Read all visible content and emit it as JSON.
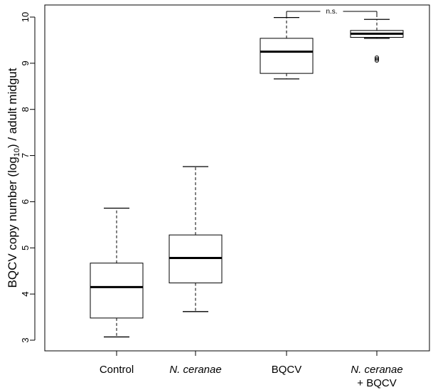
{
  "chart_data": {
    "type": "boxplot",
    "title": "",
    "xlabel": "",
    "ylabel_main": "BQCV copy number (log",
    "ylabel_sub": "10",
    "ylabel_tail": ") / adult midgut",
    "ylim": [
      3,
      10
    ],
    "yticks": [
      "3",
      "4",
      "5",
      "6",
      "7",
      "8",
      "9",
      "10"
    ],
    "grid": false,
    "legend": "none",
    "categories": [
      {
        "line1": "Control",
        "line2": "",
        "italic": false
      },
      {
        "line1": "N. ceranae",
        "line2": "",
        "italic": true
      },
      {
        "line1": "BQCV",
        "line2": "",
        "italic": false
      },
      {
        "line1": "N. ceranae",
        "line2": "+ BQCV",
        "italic": true
      }
    ],
    "boxes": [
      {
        "whisker_low": 3.07,
        "q1": 3.48,
        "median": 4.15,
        "q3": 4.67,
        "whisker_high": 5.86,
        "outliers": []
      },
      {
        "whisker_low": 3.62,
        "q1": 4.24,
        "median": 4.78,
        "q3": 5.28,
        "whisker_high": 6.76,
        "outliers": []
      },
      {
        "whisker_low": 8.66,
        "q1": 8.78,
        "median": 9.25,
        "q3": 9.54,
        "whisker_high": 9.99,
        "outliers": []
      },
      {
        "whisker_low": 9.54,
        "q1": 9.56,
        "median": 9.64,
        "q3": 9.71,
        "whisker_high": 9.95,
        "outliers": [
          9.12,
          9.09,
          9.06
        ]
      }
    ],
    "annotation": {
      "text": "n.s.",
      "between": [
        2,
        3
      ]
    }
  }
}
